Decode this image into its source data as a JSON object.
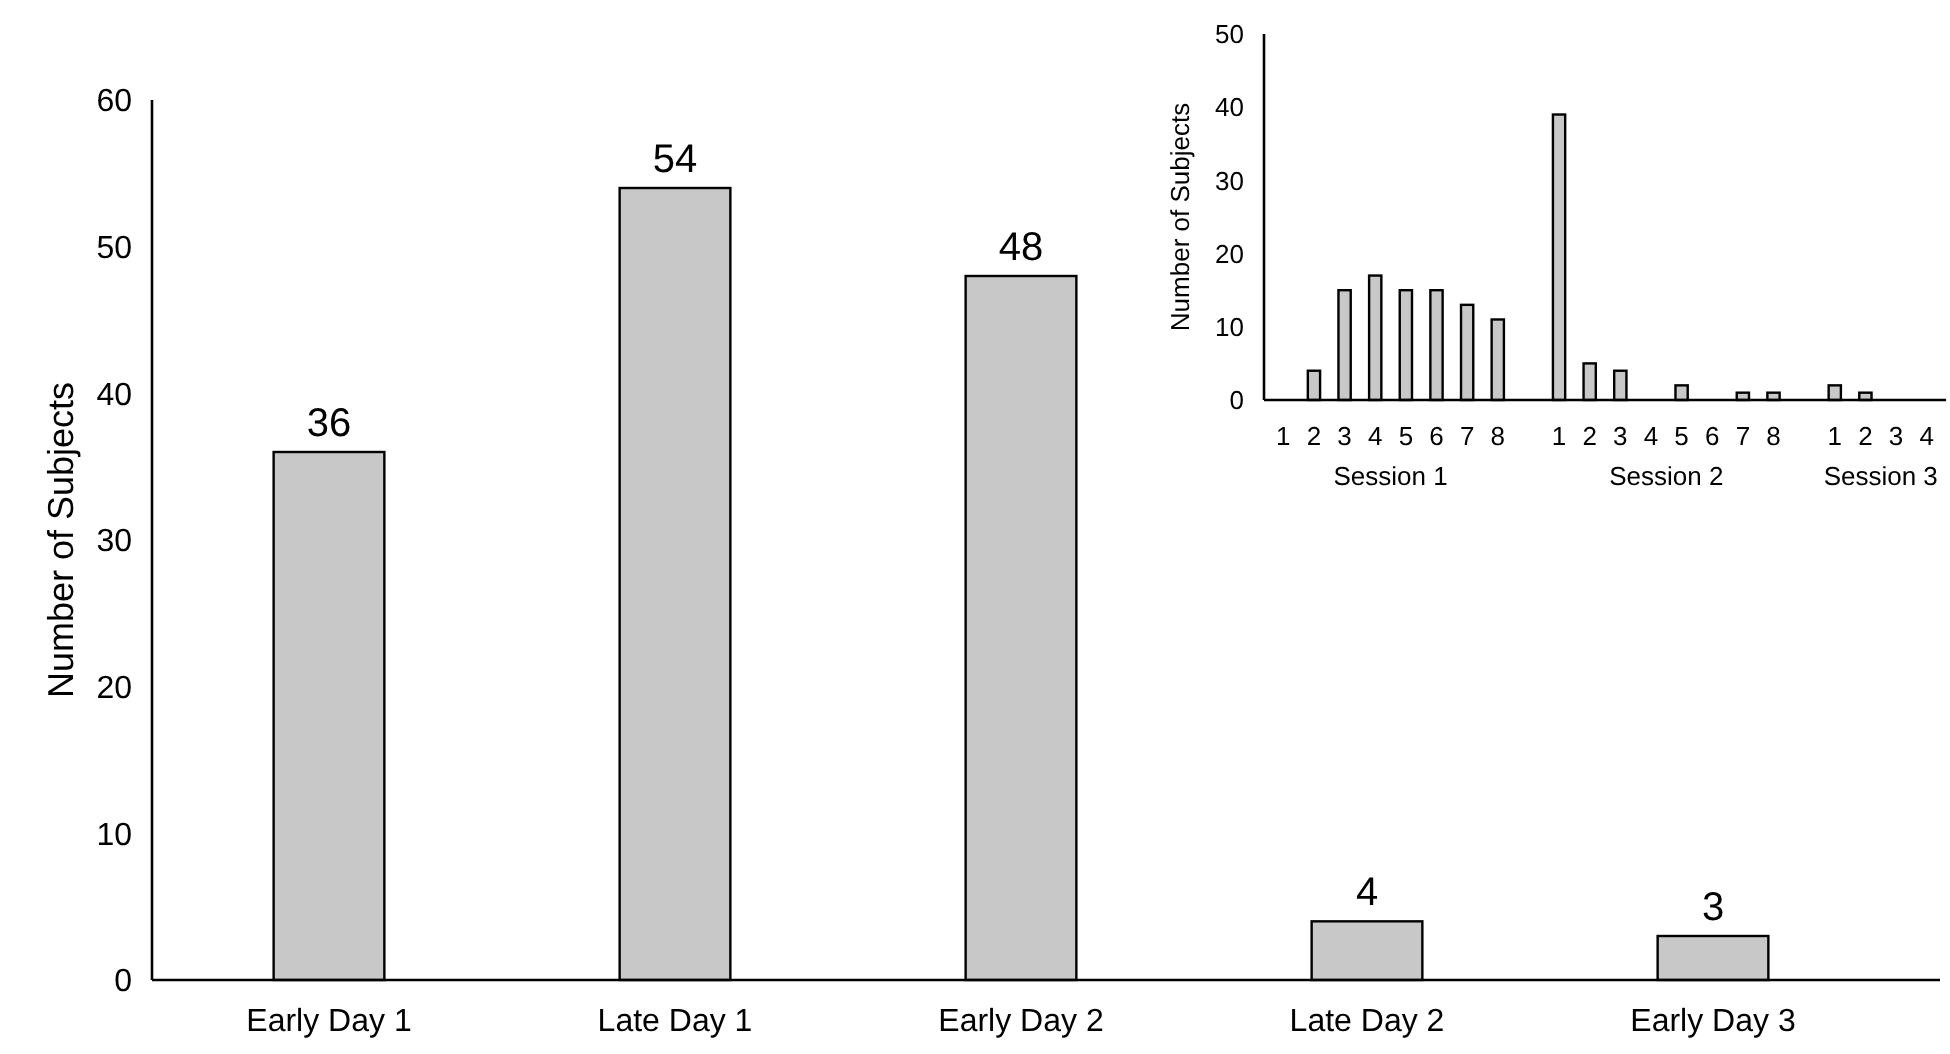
{
  "chart_data": [
    {
      "type": "bar",
      "ylabel": "Number of Subjects",
      "categories": [
        "Early Day 1",
        "Late Day 1",
        "Early Day 2",
        "Late Day 2",
        "Early Day 3"
      ],
      "values": [
        36,
        54,
        48,
        4,
        3
      ],
      "color": "#c8c8c8",
      "ylim": [
        0,
        60
      ],
      "yticks": [
        0,
        10,
        20,
        30,
        40,
        50,
        60
      ],
      "data_labels": true
    },
    {
      "type": "bar",
      "ylabel": "Number of Subjects",
      "categories": [
        "1",
        "2",
        "3",
        "4",
        "5",
        "6",
        "7",
        "8",
        null,
        "1",
        "2",
        "3",
        "4",
        "5",
        "6",
        "7",
        "8",
        null,
        "1",
        "2",
        "3",
        "4"
      ],
      "values": [
        0,
        4,
        15,
        17,
        15,
        15,
        13,
        11,
        null,
        39,
        5,
        4,
        0,
        2,
        0,
        1,
        1,
        null,
        2,
        1,
        0,
        0
      ],
      "color": "#c8c8c8",
      "ylim": [
        0,
        50
      ],
      "yticks": [
        0,
        10,
        20,
        30,
        40,
        50
      ],
      "annotations": [
        "Session 1",
        "Session 2",
        "Session 3"
      ]
    }
  ]
}
